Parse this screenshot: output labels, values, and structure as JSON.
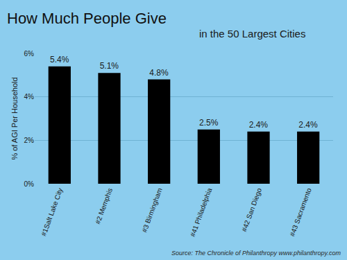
{
  "chart_data": {
    "type": "bar",
    "title": "How Much People Give",
    "subtitle": "in the 50 Largest Cities",
    "y_label": "% of AGI Per Household",
    "categories": [
      "#1Salt Lake City",
      "#2 Memphis",
      "#3 Birmingham",
      "#41 Philadelphia",
      "#42 San Diego",
      "#43 Sacramento"
    ],
    "values": [
      5.4,
      5.1,
      4.8,
      2.5,
      2.4,
      2.4
    ],
    "value_labels": [
      "5.4%",
      "5.1%",
      "4.8%",
      "2.5%",
      "2.4%",
      "2.4%"
    ],
    "data_labels": true,
    "color": "#000000",
    "ylim": [
      0,
      6
    ],
    "yticks": [
      {
        "value": 0,
        "label": "0%"
      },
      {
        "value": 2,
        "label": "2%"
      },
      {
        "value": 4,
        "label": "4%"
      },
      {
        "value": 6,
        "label": "6%"
      }
    ],
    "grid": true,
    "annotations": [
      {
        "text": "Source: The Chronicle of Philanthropy www.philanthropy.com"
      }
    ]
  }
}
